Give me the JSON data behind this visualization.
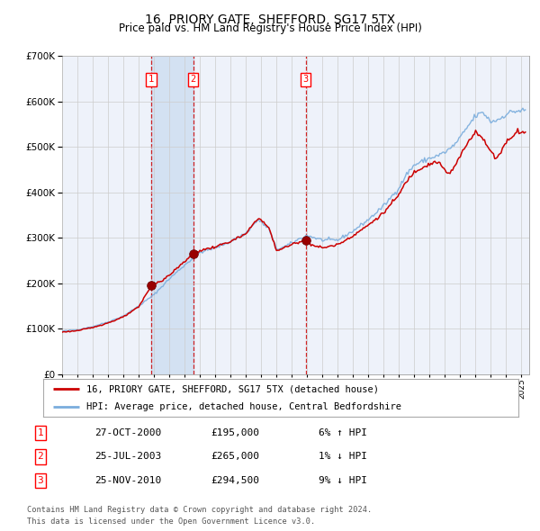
{
  "title": "16, PRIORY GATE, SHEFFORD, SG17 5TX",
  "subtitle": "Price paid vs. HM Land Registry's House Price Index (HPI)",
  "legend_label_red": "16, PRIORY GATE, SHEFFORD, SG17 5TX (detached house)",
  "legend_label_blue": "HPI: Average price, detached house, Central Bedfordshire",
  "footer_line1": "Contains HM Land Registry data © Crown copyright and database right 2024.",
  "footer_line2": "This data is licensed under the Open Government Licence v3.0.",
  "transactions": [
    {
      "num": 1,
      "date": "27-OCT-2000",
      "price": 195000,
      "hpi_rel": "6% ↑ HPI",
      "date_val": 2000.82
    },
    {
      "num": 2,
      "date": "25-JUL-2003",
      "price": 265000,
      "hpi_rel": "1% ↓ HPI",
      "date_val": 2003.56
    },
    {
      "num": 3,
      "date": "25-NOV-2010",
      "price": 294500,
      "hpi_rel": "9% ↓ HPI",
      "date_val": 2010.9
    }
  ],
  "ylim": [
    0,
    700000
  ],
  "xlim_start": 1995.0,
  "xlim_end": 2025.5,
  "background_color": "#ffffff",
  "plot_bg_color": "#eef2fa",
  "grid_color": "#cccccc",
  "red_color": "#cc0000",
  "blue_color": "#7aaddd",
  "highlight_bg": "#c8daf0",
  "dashed_line_color": "#cc0000",
  "hpi_waypoints": [
    [
      1995.0,
      95000
    ],
    [
      1996.0,
      98000
    ],
    [
      1997.0,
      105000
    ],
    [
      1998.0,
      115000
    ],
    [
      1999.0,
      128000
    ],
    [
      2000.0,
      150000
    ],
    [
      2001.0,
      175000
    ],
    [
      2002.0,
      210000
    ],
    [
      2003.0,
      240000
    ],
    [
      2004.0,
      268000
    ],
    [
      2005.0,
      278000
    ],
    [
      2006.0,
      292000
    ],
    [
      2007.0,
      310000
    ],
    [
      2007.8,
      340000
    ],
    [
      2008.5,
      320000
    ],
    [
      2009.0,
      275000
    ],
    [
      2009.5,
      280000
    ],
    [
      2010.0,
      288000
    ],
    [
      2010.5,
      298000
    ],
    [
      2011.0,
      305000
    ],
    [
      2012.0,
      295000
    ],
    [
      2013.0,
      295000
    ],
    [
      2014.0,
      315000
    ],
    [
      2015.0,
      340000
    ],
    [
      2016.0,
      370000
    ],
    [
      2017.0,
      410000
    ],
    [
      2017.5,
      440000
    ],
    [
      2018.0,
      460000
    ],
    [
      2019.0,
      475000
    ],
    [
      2019.5,
      480000
    ],
    [
      2020.0,
      488000
    ],
    [
      2020.5,
      500000
    ],
    [
      2021.0,
      520000
    ],
    [
      2021.5,
      545000
    ],
    [
      2022.0,
      568000
    ],
    [
      2022.5,
      575000
    ],
    [
      2023.0,
      555000
    ],
    [
      2023.5,
      560000
    ],
    [
      2024.0,
      572000
    ],
    [
      2024.5,
      578000
    ],
    [
      2025.3,
      580000
    ]
  ],
  "red_waypoints": [
    [
      1995.0,
      93000
    ],
    [
      1996.0,
      96000
    ],
    [
      1997.0,
      103000
    ],
    [
      1998.0,
      113000
    ],
    [
      1999.0,
      126000
    ],
    [
      2000.0,
      148000
    ],
    [
      2000.82,
      195000
    ],
    [
      2001.0,
      200000
    ],
    [
      2001.5,
      205000
    ],
    [
      2002.0,
      218000
    ],
    [
      2003.0,
      248000
    ],
    [
      2003.56,
      265000
    ],
    [
      2004.0,
      272000
    ],
    [
      2005.0,
      280000
    ],
    [
      2006.0,
      292000
    ],
    [
      2007.0,
      308000
    ],
    [
      2007.8,
      345000
    ],
    [
      2008.5,
      322000
    ],
    [
      2009.0,
      272000
    ],
    [
      2009.5,
      278000
    ],
    [
      2010.0,
      285000
    ],
    [
      2010.5,
      292000
    ],
    [
      2010.9,
      294500
    ],
    [
      2011.0,
      292000
    ],
    [
      2011.5,
      282000
    ],
    [
      2012.0,
      278000
    ],
    [
      2013.0,
      285000
    ],
    [
      2014.0,
      305000
    ],
    [
      2015.0,
      328000
    ],
    [
      2016.0,
      355000
    ],
    [
      2017.0,
      395000
    ],
    [
      2017.5,
      425000
    ],
    [
      2018.0,
      445000
    ],
    [
      2018.5,
      455000
    ],
    [
      2019.0,
      462000
    ],
    [
      2019.5,
      468000
    ],
    [
      2020.0,
      448000
    ],
    [
      2020.3,
      440000
    ],
    [
      2020.7,
      460000
    ],
    [
      2021.0,
      480000
    ],
    [
      2021.5,
      510000
    ],
    [
      2022.0,
      535000
    ],
    [
      2022.3,
      525000
    ],
    [
      2022.7,
      505000
    ],
    [
      2023.0,
      490000
    ],
    [
      2023.3,
      475000
    ],
    [
      2023.5,
      480000
    ],
    [
      2023.8,
      500000
    ],
    [
      2024.0,
      510000
    ],
    [
      2024.3,
      520000
    ],
    [
      2024.7,
      535000
    ],
    [
      2025.3,
      530000
    ]
  ]
}
